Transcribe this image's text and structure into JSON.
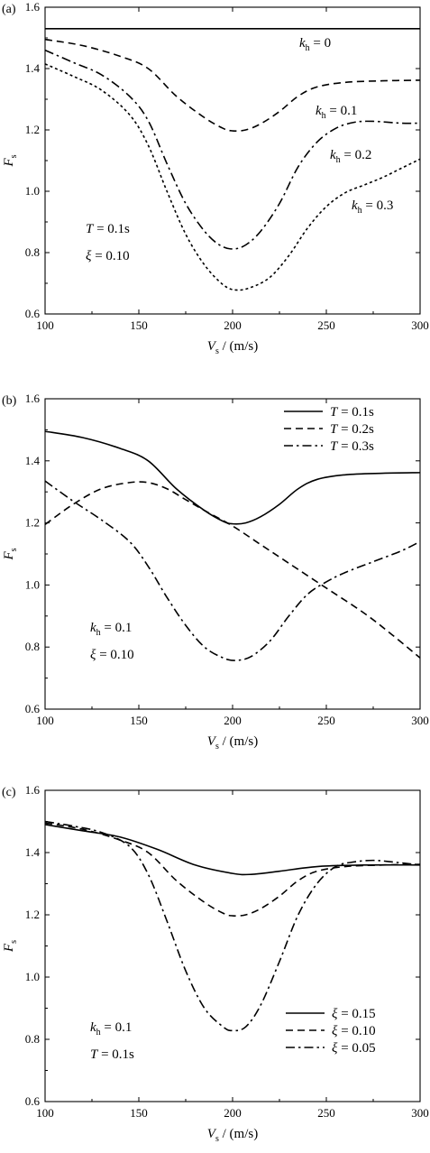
{
  "chart_data": [
    {
      "type": "line",
      "panel_label": "(a)",
      "xlabel": {
        "main": "V",
        "sub": "s",
        "rest": " / (m/s)"
      },
      "ylabel": {
        "main": "F",
        "sub": "s"
      },
      "xlim": [
        100,
        300
      ],
      "ylim": [
        0.6,
        1.6
      ],
      "x_ticks": [
        100,
        150,
        200,
        250,
        300
      ],
      "y_ticks": [
        "0.6",
        "0.8",
        "1.0",
        "1.2",
        "1.4",
        "1.6"
      ],
      "annotations": [
        {
          "main": "T",
          "rest": " = 0.1s"
        },
        {
          "main": "ξ",
          "rest": " = 0.10"
        }
      ],
      "series": [
        {
          "label": {
            "main": "k",
            "sub": "h",
            "rest": " = 0"
          },
          "dash": "solid",
          "points": [
            [
              100,
              1.53
            ],
            [
              300,
              1.53
            ]
          ]
        },
        {
          "label": {
            "main": "k",
            "sub": "h",
            "rest": " = 0.1"
          },
          "dash": "dashed",
          "points": [
            [
              100,
              1.495
            ],
            [
              120,
              1.475
            ],
            [
              140,
              1.44
            ],
            [
              155,
              1.4
            ],
            [
              170,
              1.31
            ],
            [
              185,
              1.24
            ],
            [
              195,
              1.205
            ],
            [
              200,
              1.197
            ],
            [
              207,
              1.2
            ],
            [
              215,
              1.22
            ],
            [
              225,
              1.26
            ],
            [
              235,
              1.31
            ],
            [
              245,
              1.34
            ],
            [
              260,
              1.355
            ],
            [
              280,
              1.36
            ],
            [
              300,
              1.362
            ]
          ]
        },
        {
          "label": {
            "main": "k",
            "sub": "h",
            "rest": " = 0.2"
          },
          "dash": "dashdot",
          "points": [
            [
              100,
              1.46
            ],
            [
              115,
              1.42
            ],
            [
              130,
              1.38
            ],
            [
              145,
              1.31
            ],
            [
              155,
              1.23
            ],
            [
              165,
              1.09
            ],
            [
              175,
              0.96
            ],
            [
              185,
              0.87
            ],
            [
              193,
              0.825
            ],
            [
              200,
              0.812
            ],
            [
              207,
              0.825
            ],
            [
              215,
              0.87
            ],
            [
              225,
              0.96
            ],
            [
              235,
              1.08
            ],
            [
              245,
              1.16
            ],
            [
              255,
              1.205
            ],
            [
              265,
              1.225
            ],
            [
              275,
              1.228
            ],
            [
              290,
              1.222
            ],
            [
              300,
              1.222
            ]
          ]
        },
        {
          "label": {
            "main": "k",
            "sub": "h",
            "rest": " = 0.3"
          },
          "dash": "dotted",
          "points": [
            [
              100,
              1.415
            ],
            [
              115,
              1.375
            ],
            [
              130,
              1.33
            ],
            [
              145,
              1.25
            ],
            [
              155,
              1.15
            ],
            [
              165,
              1.0
            ],
            [
              175,
              0.86
            ],
            [
              185,
              0.76
            ],
            [
              195,
              0.695
            ],
            [
              202,
              0.678
            ],
            [
              210,
              0.687
            ],
            [
              220,
              0.72
            ],
            [
              230,
              0.79
            ],
            [
              240,
              0.88
            ],
            [
              250,
              0.95
            ],
            [
              260,
              0.995
            ],
            [
              270,
              1.02
            ],
            [
              280,
              1.045
            ],
            [
              290,
              1.075
            ],
            [
              300,
              1.105
            ]
          ]
        }
      ]
    },
    {
      "type": "line",
      "panel_label": "(b)",
      "xlabel": {
        "main": "V",
        "sub": "s",
        "rest": " / (m/s)"
      },
      "ylabel": {
        "main": "F",
        "sub": "s"
      },
      "xlim": [
        100,
        300
      ],
      "ylim": [
        0.6,
        1.6
      ],
      "x_ticks": [
        100,
        150,
        200,
        250,
        300
      ],
      "y_ticks": [
        "0.6",
        "0.8",
        "1.0",
        "1.2",
        "1.4",
        "1.6"
      ],
      "annotations": [
        {
          "main": "k",
          "sub": "h",
          "rest": " = 0.1"
        },
        {
          "main": "ξ",
          "rest": " = 0.10"
        }
      ],
      "legend": "top-right",
      "series": [
        {
          "label": {
            "main": "T",
            "rest": " = 0.1s"
          },
          "dash": "solid",
          "points": [
            [
              100,
              1.495
            ],
            [
              120,
              1.475
            ],
            [
              140,
              1.44
            ],
            [
              155,
              1.4
            ],
            [
              170,
              1.31
            ],
            [
              185,
              1.24
            ],
            [
              195,
              1.205
            ],
            [
              200,
              1.197
            ],
            [
              207,
              1.2
            ],
            [
              215,
              1.22
            ],
            [
              225,
              1.26
            ],
            [
              235,
              1.31
            ],
            [
              245,
              1.34
            ],
            [
              260,
              1.355
            ],
            [
              280,
              1.36
            ],
            [
              300,
              1.362
            ]
          ]
        },
        {
          "label": {
            "main": "T",
            "rest": " = 0.2s"
          },
          "dash": "dashed",
          "points": [
            [
              100,
              1.195
            ],
            [
              115,
              1.26
            ],
            [
              130,
              1.31
            ],
            [
              145,
              1.33
            ],
            [
              155,
              1.33
            ],
            [
              165,
              1.31
            ],
            [
              175,
              1.275
            ],
            [
              185,
              1.24
            ],
            [
              200,
              1.19
            ],
            [
              215,
              1.13
            ],
            [
              230,
              1.07
            ],
            [
              250,
              0.99
            ],
            [
              270,
              0.91
            ],
            [
              285,
              0.84
            ],
            [
              300,
              0.765
            ]
          ]
        },
        {
          "label": {
            "main": "T",
            "rest": " = 0.3s"
          },
          "dash": "dashdot",
          "points": [
            [
              100,
              1.335
            ],
            [
              115,
              1.27
            ],
            [
              130,
              1.21
            ],
            [
              145,
              1.14
            ],
            [
              155,
              1.06
            ],
            [
              165,
              0.96
            ],
            [
              175,
              0.87
            ],
            [
              185,
              0.8
            ],
            [
              195,
              0.765
            ],
            [
              202,
              0.757
            ],
            [
              210,
              0.77
            ],
            [
              220,
              0.82
            ],
            [
              230,
              0.9
            ],
            [
              240,
              0.97
            ],
            [
              250,
              1.01
            ],
            [
              260,
              1.04
            ],
            [
              275,
              1.075
            ],
            [
              290,
              1.11
            ],
            [
              300,
              1.14
            ]
          ]
        }
      ]
    },
    {
      "type": "line",
      "panel_label": "(c)",
      "xlabel": {
        "main": "V",
        "sub": "s",
        "rest": " / (m/s)"
      },
      "ylabel": {
        "main": "F",
        "sub": "s"
      },
      "xlim": [
        100,
        300
      ],
      "ylim": [
        0.6,
        1.6
      ],
      "x_ticks": [
        100,
        150,
        200,
        250,
        300
      ],
      "y_ticks": [
        "0.6",
        "0.8",
        "1.0",
        "1.2",
        "1.4",
        "1.6"
      ],
      "annotations": [
        {
          "main": "k",
          "sub": "h",
          "rest": " = 0.1"
        },
        {
          "main": "T",
          "rest": " = 0.1s"
        }
      ],
      "legend": "bottom-right",
      "series": [
        {
          "label": {
            "main": "ξ",
            "rest": " = 0.15"
          },
          "dash": "solid",
          "points": [
            [
              100,
              1.49
            ],
            [
              120,
              1.47
            ],
            [
              140,
              1.45
            ],
            [
              160,
              1.41
            ],
            [
              180,
              1.36
            ],
            [
              200,
              1.333
            ],
            [
              210,
              1.33
            ],
            [
              225,
              1.34
            ],
            [
              245,
              1.355
            ],
            [
              270,
              1.36
            ],
            [
              300,
              1.36
            ]
          ]
        },
        {
          "label": {
            "main": "ξ",
            "rest": " = 0.10"
          },
          "dash": "dashed",
          "points": [
            [
              100,
              1.495
            ],
            [
              120,
              1.475
            ],
            [
              140,
              1.44
            ],
            [
              155,
              1.4
            ],
            [
              170,
              1.31
            ],
            [
              185,
              1.24
            ],
            [
              195,
              1.205
            ],
            [
              200,
              1.197
            ],
            [
              207,
              1.2
            ],
            [
              215,
              1.22
            ],
            [
              225,
              1.26
            ],
            [
              235,
              1.31
            ],
            [
              245,
              1.34
            ],
            [
              260,
              1.355
            ],
            [
              280,
              1.36
            ],
            [
              300,
              1.362
            ]
          ]
        },
        {
          "label": {
            "main": "ξ",
            "rest": " = 0.05"
          },
          "dash": "dashdot",
          "points": [
            [
              100,
              1.5
            ],
            [
              115,
              1.485
            ],
            [
              130,
              1.465
            ],
            [
              145,
              1.42
            ],
            [
              155,
              1.33
            ],
            [
              165,
              1.18
            ],
            [
              175,
              1.02
            ],
            [
              185,
              0.9
            ],
            [
              195,
              0.84
            ],
            [
              200,
              0.828
            ],
            [
              207,
              0.84
            ],
            [
              215,
              0.91
            ],
            [
              225,
              1.05
            ],
            [
              235,
              1.2
            ],
            [
              245,
              1.3
            ],
            [
              255,
              1.355
            ],
            [
              265,
              1.37
            ],
            [
              275,
              1.375
            ],
            [
              285,
              1.37
            ],
            [
              300,
              1.36
            ]
          ]
        }
      ]
    }
  ]
}
